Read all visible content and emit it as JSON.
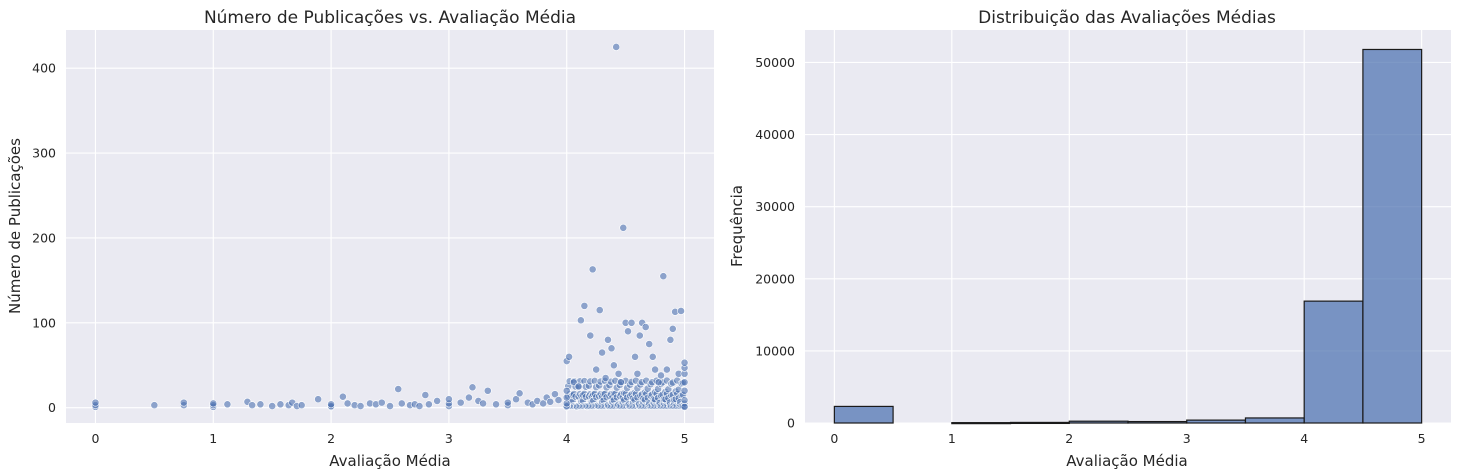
{
  "chart_data": [
    {
      "type": "scatter",
      "title": "Número de Publicações vs. Avaliação Média",
      "xlabel": "Avaliação Média",
      "ylabel": "Número de Publicações",
      "xlim": [
        -0.25,
        5.25
      ],
      "ylim": [
        -18,
        445
      ],
      "xticks": [
        "0",
        "1",
        "2",
        "3",
        "4",
        "5"
      ],
      "yticks": [
        "0",
        "100",
        "200",
        "300",
        "400"
      ],
      "grid": true,
      "color": "#4c72b0",
      "points": [
        [
          0,
          1
        ],
        [
          0,
          3
        ],
        [
          0,
          6
        ],
        [
          0.5,
          3
        ],
        [
          0.75,
          3
        ],
        [
          0.75,
          6
        ],
        [
          1,
          1
        ],
        [
          1,
          3
        ],
        [
          1,
          5
        ],
        [
          1.12,
          4
        ],
        [
          1.29,
          7
        ],
        [
          1.33,
          3
        ],
        [
          1.4,
          4
        ],
        [
          1.5,
          2
        ],
        [
          1.57,
          4
        ],
        [
          1.64,
          3
        ],
        [
          1.67,
          6
        ],
        [
          1.71,
          2
        ],
        [
          1.75,
          3
        ],
        [
          1.89,
          10
        ],
        [
          2,
          1
        ],
        [
          2,
          2
        ],
        [
          2,
          4
        ],
        [
          2.1,
          13
        ],
        [
          2.14,
          5
        ],
        [
          2.2,
          3
        ],
        [
          2.25,
          2
        ],
        [
          2.33,
          5
        ],
        [
          2.38,
          4
        ],
        [
          2.43,
          6
        ],
        [
          2.5,
          2
        ],
        [
          2.57,
          22
        ],
        [
          2.6,
          5
        ],
        [
          2.67,
          3
        ],
        [
          2.71,
          4
        ],
        [
          2.75,
          2
        ],
        [
          2.8,
          15
        ],
        [
          2.83,
          4
        ],
        [
          2.9,
          8
        ],
        [
          3,
          2
        ],
        [
          3,
          5
        ],
        [
          3,
          10
        ],
        [
          3.1,
          6
        ],
        [
          3.17,
          12
        ],
        [
          3.2,
          24
        ],
        [
          3.25,
          8
        ],
        [
          3.29,
          5
        ],
        [
          3.33,
          20
        ],
        [
          3.4,
          4
        ],
        [
          3.5,
          3
        ],
        [
          3.5,
          6
        ],
        [
          3.57,
          10
        ],
        [
          3.6,
          17
        ],
        [
          3.67,
          6
        ],
        [
          3.71,
          4
        ],
        [
          3.75,
          8
        ],
        [
          3.8,
          5
        ],
        [
          3.83,
          12
        ],
        [
          3.86,
          7
        ],
        [
          3.9,
          16
        ],
        [
          3.93,
          9
        ],
        [
          4,
          2
        ],
        [
          4,
          5
        ],
        [
          4,
          12
        ],
        [
          4,
          20
        ],
        [
          4,
          55
        ],
        [
          4.02,
          60
        ],
        [
          4.06,
          30
        ],
        [
          4.1,
          25
        ],
        [
          4.12,
          103
        ],
        [
          4.15,
          120
        ],
        [
          4.2,
          85
        ],
        [
          4.22,
          163
        ],
        [
          4.25,
          45
        ],
        [
          4.28,
          115
        ],
        [
          4.3,
          65
        ],
        [
          4.33,
          35
        ],
        [
          4.35,
          80
        ],
        [
          4.38,
          70
        ],
        [
          4.4,
          50
        ],
        [
          4.42,
          425
        ],
        [
          4.44,
          40
        ],
        [
          4.46,
          30
        ],
        [
          4.48,
          212
        ],
        [
          4.5,
          100
        ],
        [
          4.52,
          90
        ],
        [
          4.55,
          100
        ],
        [
          4.58,
          60
        ],
        [
          4.6,
          40
        ],
        [
          4.62,
          85
        ],
        [
          4.64,
          100
        ],
        [
          4.67,
          95
        ],
        [
          4.7,
          75
        ],
        [
          4.73,
          60
        ],
        [
          4.75,
          45
        ],
        [
          4.78,
          30
        ],
        [
          4.8,
          38
        ],
        [
          4.82,
          155
        ],
        [
          4.85,
          45
        ],
        [
          4.88,
          80
        ],
        [
          4.9,
          93
        ],
        [
          4.92,
          113
        ],
        [
          4.95,
          40
        ],
        [
          4.97,
          114
        ],
        [
          5,
          1
        ],
        [
          5,
          20
        ],
        [
          5,
          30
        ],
        [
          5,
          40
        ],
        [
          5,
          47
        ],
        [
          5,
          53
        ]
      ],
      "dense_band": {
        "x_from": 4.0,
        "x_to": 5.0,
        "y_from": 1,
        "y_to": 32
      }
    },
    {
      "type": "bar",
      "title": "Distribuição das Avaliações Médias",
      "xlabel": "Avaliação Média",
      "ylabel": "Frequência",
      "xlim": [
        -0.25,
        5.25
      ],
      "ylim": [
        0,
        54500
      ],
      "xticks": [
        "0",
        "1",
        "2",
        "3",
        "4",
        "5"
      ],
      "yticks": [
        "0",
        "10000",
        "20000",
        "30000",
        "40000",
        "50000"
      ],
      "grid": true,
      "color": "#4c72b0",
      "bins": [
        {
          "from": 0.0,
          "to": 0.5,
          "value": 2300
        },
        {
          "from": 0.5,
          "to": 1.0,
          "value": 0
        },
        {
          "from": 1.0,
          "to": 1.5,
          "value": 50
        },
        {
          "from": 1.5,
          "to": 2.0,
          "value": 80
        },
        {
          "from": 2.0,
          "to": 2.5,
          "value": 250
        },
        {
          "from": 2.5,
          "to": 3.0,
          "value": 200
        },
        {
          "from": 3.0,
          "to": 3.5,
          "value": 400
        },
        {
          "from": 3.5,
          "to": 4.0,
          "value": 700
        },
        {
          "from": 4.0,
          "to": 4.5,
          "value": 16900
        },
        {
          "from": 4.5,
          "to": 5.0,
          "value": 51800
        }
      ]
    }
  ]
}
